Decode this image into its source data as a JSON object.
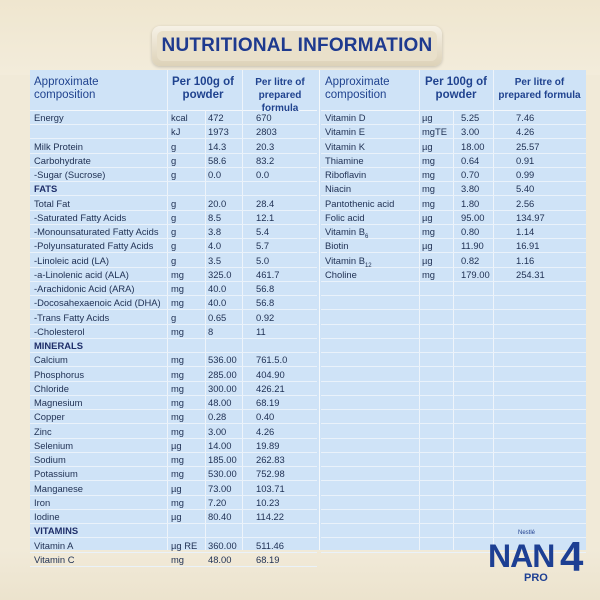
{
  "title": "NUTRITIONAL INFORMATION",
  "headers": {
    "approx": "Approximate composition",
    "per100": "Per 100g of powder",
    "perlitre": "Per litre of prepared formula"
  },
  "left_rows": [
    {
      "name": "Energy",
      "unit": "kcal",
      "p100": "472",
      "plitre": "670"
    },
    {
      "name": "",
      "unit": "kJ",
      "p100": "1973",
      "plitre": "2803"
    },
    {
      "name": "Milk Protein",
      "unit": "g",
      "p100": "14.3",
      "plitre": "20.3"
    },
    {
      "name": "Carbohydrate",
      "unit": "g",
      "p100": "58.6",
      "plitre": "83.2"
    },
    {
      "name": "-Sugar (Sucrose)",
      "unit": "g",
      "p100": "0.0",
      "plitre": "0.0"
    },
    {
      "name": "FATS",
      "unit": "",
      "p100": "",
      "plitre": "",
      "section": true
    },
    {
      "name": "Total Fat",
      "unit": "g",
      "p100": "20.0",
      "plitre": "28.4"
    },
    {
      "name": "-Saturated Fatty Acids",
      "unit": "g",
      "p100": "8.5",
      "plitre": "12.1"
    },
    {
      "name": "-Monounsaturated Fatty Acids",
      "unit": "g",
      "p100": "3.8",
      "plitre": "5.4"
    },
    {
      "name": "-Polyunsaturated Fatty Acids",
      "unit": "g",
      "p100": "4.0",
      "plitre": "5.7"
    },
    {
      "name": "-Linoleic acid (LA)",
      "unit": "g",
      "p100": "3.5",
      "plitre": "5.0"
    },
    {
      "name": "-a-Linolenic acid (ALA)",
      "unit": "mg",
      "p100": "325.0",
      "plitre": "461.7"
    },
    {
      "name": "-Arachidonic Acid (ARA)",
      "unit": "mg",
      "p100": "40.0",
      "plitre": "56.8"
    },
    {
      "name": "-Docosahexaenoic Acid (DHA)",
      "unit": "mg",
      "p100": "40.0",
      "plitre": "56.8"
    },
    {
      "name": "-Trans Fatty Acids",
      "unit": "g",
      "p100": "0.65",
      "plitre": "0.92"
    },
    {
      "name": "-Cholesterol",
      "unit": "mg",
      "p100": "8",
      "plitre": "11"
    },
    {
      "name": "MINERALS",
      "unit": "",
      "p100": "",
      "plitre": "",
      "section": true
    },
    {
      "name": "Calcium",
      "unit": "mg",
      "p100": "536.00",
      "plitre": "761.5.0"
    },
    {
      "name": "Phosphorus",
      "unit": "mg",
      "p100": "285.00",
      "plitre": "404.90"
    },
    {
      "name": "Chloride",
      "unit": "mg",
      "p100": "300.00",
      "plitre": "426.21"
    },
    {
      "name": "Magnesium",
      "unit": "mg",
      "p100": "48.00",
      "plitre": "68.19"
    },
    {
      "name": "Copper",
      "unit": "mg",
      "p100": "0.28",
      "plitre": "0.40"
    },
    {
      "name": "Zinc",
      "unit": "mg",
      "p100": "3.00",
      "plitre": "4.26"
    },
    {
      "name": "Selenium",
      "unit": "µg",
      "p100": "14.00",
      "plitre": "19.89"
    },
    {
      "name": "Sodium",
      "unit": "mg",
      "p100": "185.00",
      "plitre": "262.83"
    },
    {
      "name": "Potassium",
      "unit": "mg",
      "p100": "530.00",
      "plitre": "752.98"
    },
    {
      "name": "Manganese",
      "unit": "µg",
      "p100": "73.00",
      "plitre": "103.71"
    },
    {
      "name": "Iron",
      "unit": "mg",
      "p100": "7.20",
      "plitre": "10.23"
    },
    {
      "name": "Iodine",
      "unit": "µg",
      "p100": "80.40",
      "plitre": "114.22"
    },
    {
      "name": "VITAMINS",
      "unit": "",
      "p100": "",
      "plitre": "",
      "section": true
    },
    {
      "name": "Vitamin A",
      "unit": "µg RE",
      "p100": "360.00",
      "plitre": "511.46"
    },
    {
      "name": "Vitamin C",
      "unit": "mg",
      "p100": "48.00",
      "plitre": "68.19"
    }
  ],
  "right_rows": [
    {
      "name": "Vitamin D",
      "sub": "",
      "unit": "µg",
      "p100": "5.25",
      "plitre": "7.46"
    },
    {
      "name": "Vitamin E",
      "sub": "",
      "unit": "mgTE",
      "p100": "3.00",
      "plitre": "4.26"
    },
    {
      "name": "Vitamin K",
      "sub": "",
      "unit": "µg",
      "p100": "18.00",
      "plitre": "25.57"
    },
    {
      "name": "Thiamine",
      "sub": "",
      "unit": "mg",
      "p100": "0.64",
      "plitre": "0.91"
    },
    {
      "name": "Riboflavin",
      "sub": "",
      "unit": "mg",
      "p100": "0.70",
      "plitre": "0.99"
    },
    {
      "name": "Niacin",
      "sub": "",
      "unit": "mg",
      "p100": "3.80",
      "plitre": "5.40"
    },
    {
      "name": "Pantothenic acid",
      "sub": "",
      "unit": "mg",
      "p100": "1.80",
      "plitre": "2.56"
    },
    {
      "name": "Folic acid",
      "sub": "",
      "unit": "µg",
      "p100": "95.00",
      "plitre": "134.97"
    },
    {
      "name": "Vitamin B",
      "sub": "6",
      "unit": "mg",
      "p100": "0.80",
      "plitre": "1.14"
    },
    {
      "name": "Biotin",
      "sub": "",
      "unit": "µg",
      "p100": "11.90",
      "plitre": "16.91"
    },
    {
      "name": "Vitamin B",
      "sub": "12",
      "unit": "µg",
      "p100": "0.82",
      "plitre": "1.16"
    },
    {
      "name": "Choline",
      "sub": "",
      "unit": "mg",
      "p100": "179.00",
      "plitre": "254.31"
    }
  ],
  "logo": {
    "brand": "Nestlé",
    "product": "NAN",
    "variant": "PRO",
    "stage": "4"
  },
  "colors": {
    "panel": "#cfe3f7",
    "title": "#1e3a8f",
    "text": "#1e2f52"
  }
}
